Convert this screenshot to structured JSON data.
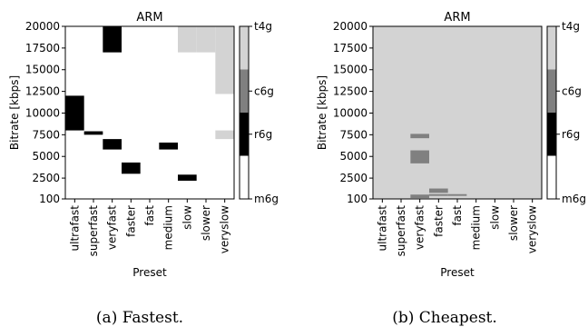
{
  "captions": [
    "(a) Fastest.",
    "(b) Cheapest."
  ],
  "chart_data": [
    {
      "type": "heatmap",
      "title": "ARM",
      "xlabel": "Preset",
      "ylabel": "Bitrate [kbps]",
      "categories": [
        "ultrafast",
        "superfast",
        "veryfast",
        "faster",
        "fast",
        "medium",
        "slow",
        "slower",
        "veryslow"
      ],
      "y_ticks": [
        100,
        2500,
        5000,
        7500,
        10000,
        12500,
        15000,
        17500,
        20000
      ],
      "ylim": [
        100,
        20000
      ],
      "colorbar": {
        "labels": [
          "m6g",
          "r6g",
          "c6g",
          "t4g"
        ],
        "colors": [
          "#ffffff",
          "#000000",
          "#808080",
          "#d3d3d3"
        ]
      },
      "grid": false,
      "background_instance": "m6g",
      "cells": [
        {
          "preset": "ultrafast",
          "y0": 8000,
          "y1": 12000,
          "instance": "r6g"
        },
        {
          "preset": "superfast",
          "y0": 7500,
          "y1": 7900,
          "instance": "r6g"
        },
        {
          "preset": "veryfast",
          "y0": 17000,
          "y1": 20000,
          "instance": "r6g"
        },
        {
          "preset": "veryfast",
          "y0": 5800,
          "y1": 7000,
          "instance": "r6g"
        },
        {
          "preset": "faster",
          "y0": 3000,
          "y1": 4300,
          "instance": "r6g"
        },
        {
          "preset": "medium",
          "y0": 5800,
          "y1": 6600,
          "instance": "r6g"
        },
        {
          "preset": "slow",
          "y0": 2200,
          "y1": 2900,
          "instance": "r6g"
        },
        {
          "preset": "slow",
          "y0": 17000,
          "y1": 20000,
          "instance": "t4g"
        },
        {
          "preset": "slower",
          "y0": 17000,
          "y1": 20000,
          "instance": "t4g"
        },
        {
          "preset": "veryslow",
          "y0": 12200,
          "y1": 20000,
          "instance": "t4g"
        },
        {
          "preset": "veryslow",
          "y0": 7000,
          "y1": 8000,
          "instance": "t4g"
        }
      ]
    },
    {
      "type": "heatmap",
      "title": "ARM",
      "xlabel": "Preset",
      "ylabel": "Bitrate [kbps]",
      "categories": [
        "ultrafast",
        "superfast",
        "veryfast",
        "faster",
        "fast",
        "medium",
        "slow",
        "slower",
        "veryslow"
      ],
      "y_ticks": [
        100,
        2500,
        5000,
        7500,
        10000,
        12500,
        15000,
        17500,
        20000
      ],
      "ylim": [
        100,
        20000
      ],
      "colorbar": {
        "labels": [
          "m6g",
          "r6g",
          "c6g",
          "t4g"
        ],
        "colors": [
          "#ffffff",
          "#000000",
          "#808080",
          "#d3d3d3"
        ]
      },
      "grid": false,
      "background_instance": "t4g",
      "cells": [
        {
          "preset": "veryfast",
          "y0": 7100,
          "y1": 7600,
          "instance": "c6g"
        },
        {
          "preset": "veryfast",
          "y0": 4200,
          "y1": 5700,
          "instance": "c6g"
        },
        {
          "preset": "veryfast",
          "y0": 200,
          "y1": 600,
          "instance": "c6g"
        },
        {
          "preset": "faster",
          "y0": 800,
          "y1": 1300,
          "instance": "c6g"
        },
        {
          "preset": "faster",
          "y0": 450,
          "y1": 650,
          "instance": "c6g"
        },
        {
          "preset": "fast",
          "y0": 450,
          "y1": 650,
          "instance": "c6g"
        }
      ]
    }
  ]
}
